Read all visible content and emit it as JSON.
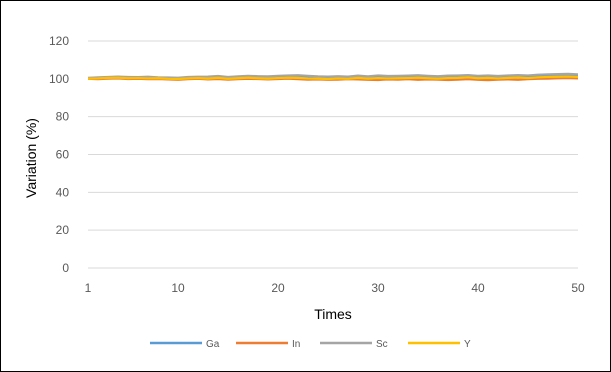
{
  "chart_data": {
    "type": "line",
    "xlabel": "Times",
    "ylabel": "Variation (%)",
    "xlim": [
      1,
      50
    ],
    "ylim": [
      0,
      120
    ],
    "yticks": [
      0,
      20,
      40,
      60,
      80,
      100,
      120
    ],
    "xticks": [
      1,
      10,
      20,
      30,
      40,
      50
    ],
    "grid": "horizontal",
    "legend_position": "bottom",
    "x": [
      1,
      2,
      3,
      4,
      5,
      6,
      7,
      8,
      9,
      10,
      11,
      12,
      13,
      14,
      15,
      16,
      17,
      18,
      19,
      20,
      21,
      22,
      23,
      24,
      25,
      26,
      27,
      28,
      29,
      30,
      31,
      32,
      33,
      34,
      35,
      36,
      37,
      38,
      39,
      40,
      41,
      42,
      43,
      44,
      45,
      46,
      47,
      48,
      49,
      50
    ],
    "series": [
      {
        "name": "Ga",
        "color": "#5B9BD5",
        "values": [
          100.2,
          100.4,
          100.8,
          101.0,
          100.8,
          100.6,
          100.8,
          100.5,
          100.4,
          100.3,
          100.7,
          100.9,
          100.9,
          101.2,
          100.6,
          100.9,
          101.1,
          101.0,
          100.9,
          101.1,
          101.3,
          101.4,
          101.2,
          100.9,
          100.8,
          101.0,
          100.8,
          101.2,
          100.9,
          101.3,
          101.0,
          101.1,
          101.2,
          101.4,
          101.1,
          100.9,
          101.2,
          101.3,
          101.5,
          101.0,
          101.2,
          100.9,
          101.3,
          101.5,
          101.2,
          101.6,
          101.9,
          102.0,
          102.1,
          101.9
        ]
      },
      {
        "name": "In",
        "color": "#ED7D31",
        "values": [
          100.0,
          99.8,
          100.1,
          100.2,
          99.9,
          100.0,
          99.8,
          99.9,
          99.7,
          99.5,
          99.8,
          100.0,
          99.7,
          99.9,
          99.6,
          99.8,
          100.0,
          99.9,
          99.7,
          99.9,
          100.1,
          99.8,
          99.6,
          99.7,
          99.5,
          99.6,
          99.8,
          99.7,
          99.5,
          99.4,
          99.7,
          99.6,
          99.8,
          99.5,
          99.7,
          99.6,
          99.4,
          99.6,
          99.8,
          99.5,
          99.3,
          99.6,
          99.7,
          99.5,
          99.8,
          100.0,
          100.1,
          100.3,
          100.4,
          100.2
        ]
      },
      {
        "name": "Sc",
        "color": "#A5A5A5",
        "values": [
          100.5,
          100.8,
          101.0,
          101.2,
          101.0,
          100.9,
          101.1,
          100.8,
          100.7,
          100.6,
          101.0,
          101.1,
          101.2,
          101.5,
          101.0,
          101.3,
          101.6,
          101.4,
          101.3,
          101.6,
          101.8,
          101.9,
          101.6,
          101.3,
          101.2,
          101.4,
          101.2,
          101.7,
          101.3,
          101.8,
          101.5,
          101.6,
          101.7,
          101.9,
          101.6,
          101.4,
          101.7,
          101.8,
          102.0,
          101.6,
          101.8,
          101.5,
          101.8,
          102.0,
          101.8,
          102.2,
          102.4,
          102.5,
          102.6,
          102.4
        ]
      },
      {
        "name": "Y",
        "color": "#FFC000",
        "values": [
          100.1,
          100.2,
          100.5,
          100.6,
          100.3,
          100.4,
          100.2,
          100.3,
          100.0,
          99.9,
          100.2,
          100.4,
          100.1,
          100.5,
          100.0,
          100.3,
          100.6,
          100.3,
          100.1,
          100.4,
          100.6,
          100.5,
          100.2,
          100.1,
          99.9,
          100.2,
          100.0,
          100.5,
          100.1,
          100.4,
          100.2,
          100.3,
          100.4,
          100.6,
          100.3,
          100.1,
          100.4,
          100.5,
          100.8,
          100.3,
          100.5,
          100.2,
          100.5,
          100.7,
          100.4,
          100.8,
          101.0,
          101.1,
          101.2,
          101.0
        ]
      }
    ]
  }
}
